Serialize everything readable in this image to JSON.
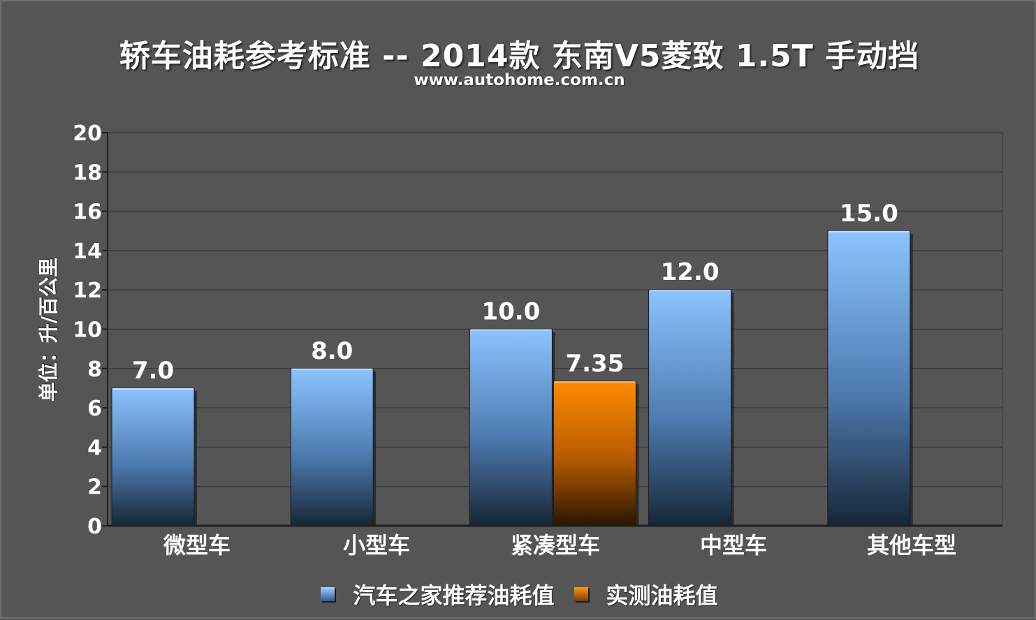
{
  "chart_data": {
    "type": "bar",
    "title": "轿车油耗参考标准 -- 2014款 东南V5菱致 1.5T 手动挡",
    "subtitle": "www.autohome.com.cn",
    "ylabel": "单位：升/百公里",
    "ylim": [
      0,
      20
    ],
    "yticks": [
      0,
      2,
      4,
      6,
      8,
      10,
      12,
      14,
      16,
      18,
      20
    ],
    "grid": true,
    "legend_position": "bottom",
    "categories": [
      "微型车",
      "小型车",
      "紧凑型车",
      "中型车",
      "其他车型"
    ],
    "series": [
      {
        "name": "汽车之家推荐油耗值",
        "color": "#7fb8f5",
        "values": [
          7.0,
          8.0,
          10.0,
          12.0,
          15.0
        ],
        "labels": [
          "7.0",
          "8.0",
          "10.0",
          "12.0",
          "15.0"
        ]
      },
      {
        "name": "实测油耗值",
        "color": "#ff8a00",
        "values": [
          null,
          null,
          7.35,
          null,
          null
        ],
        "labels": [
          "",
          "",
          "7.35",
          "",
          ""
        ]
      }
    ]
  }
}
